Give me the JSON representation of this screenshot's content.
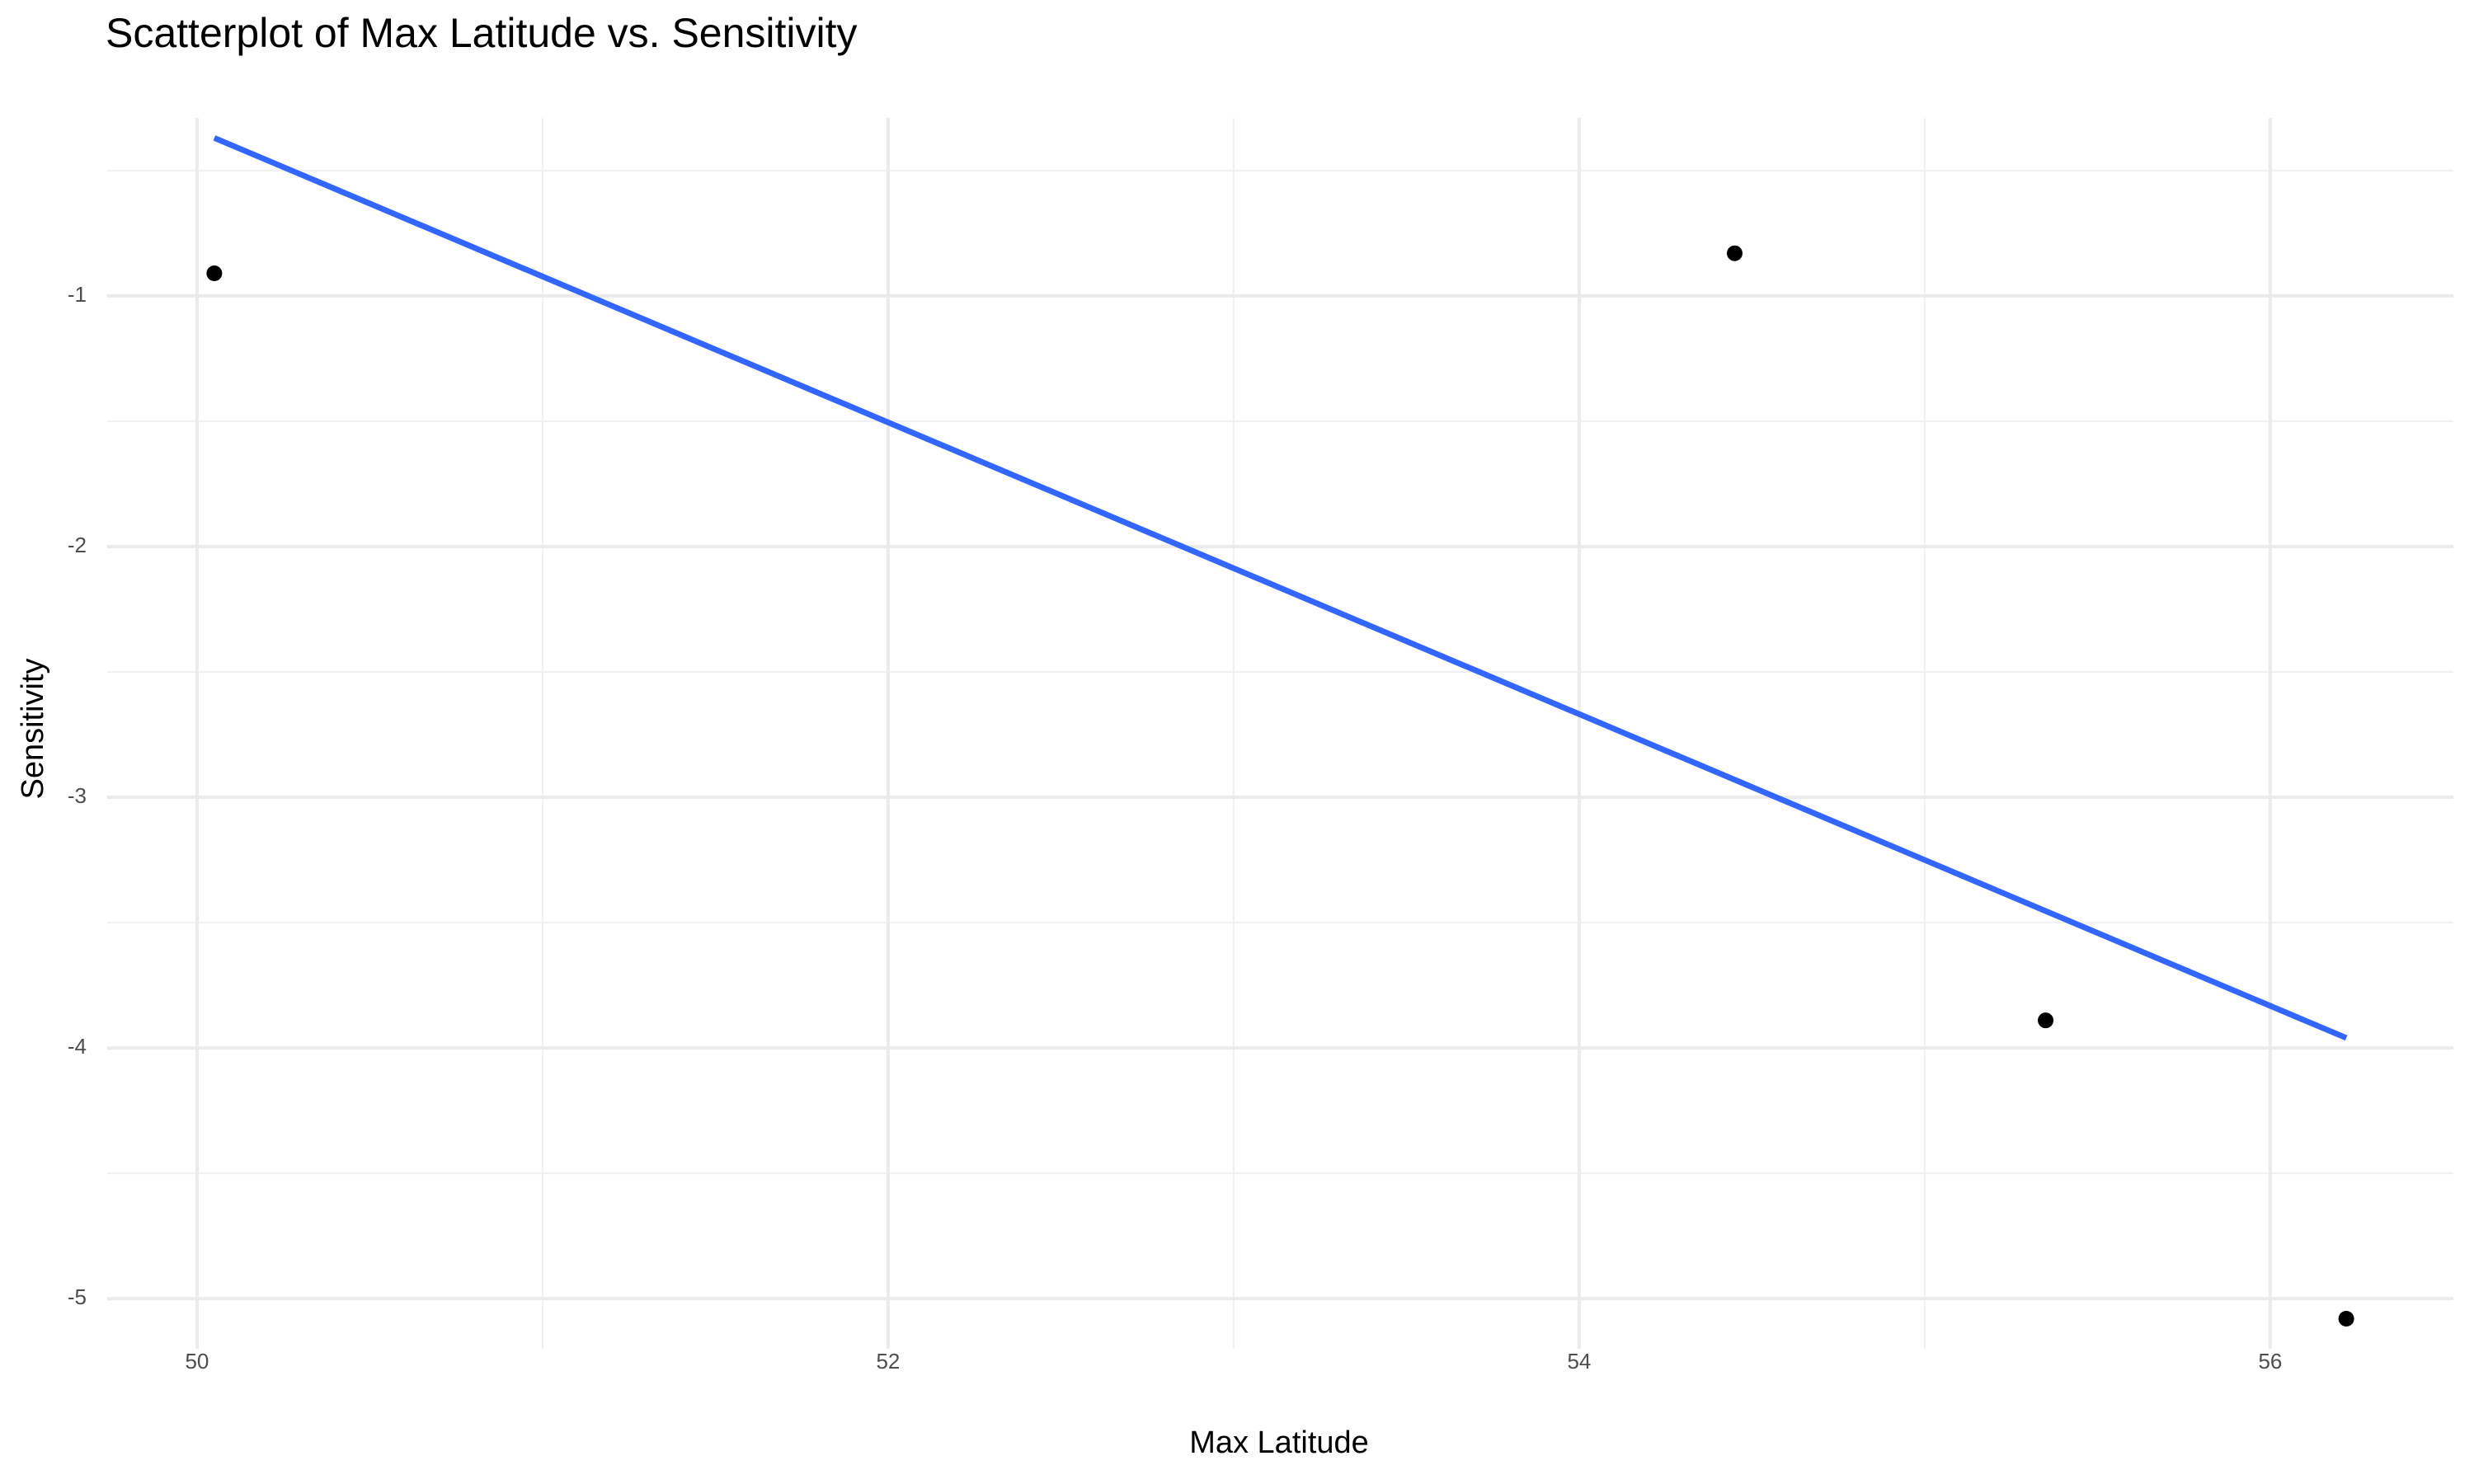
{
  "chart_data": {
    "type": "scatter",
    "title": "Scatterplot of Max Latitude vs. Sensitivity",
    "x_label": "Max Latitude",
    "y_label": "Sensitivity",
    "x": [
      50.05,
      54.45,
      55.35,
      56.22
    ],
    "values": [
      -0.91,
      -0.83,
      -3.89,
      -5.08
    ],
    "color": "#000000",
    "fit_line": {
      "x": [
        50.05,
        56.22
      ],
      "values": [
        -0.37,
        -3.96
      ],
      "color": "#3366ff"
    },
    "xlim": [
      49.74,
      56.53
    ],
    "ylim": [
      -5.2,
      -0.29
    ],
    "xticks": [
      50,
      52,
      54,
      56
    ],
    "yticks": [
      -1,
      -2,
      -3,
      -4,
      -5
    ],
    "x_minor_ticks": [
      51,
      53,
      55
    ],
    "y_minor_ticks": [
      -0.5,
      -1.5,
      -2.5,
      -3.5,
      -4.5
    ],
    "grid": true
  }
}
